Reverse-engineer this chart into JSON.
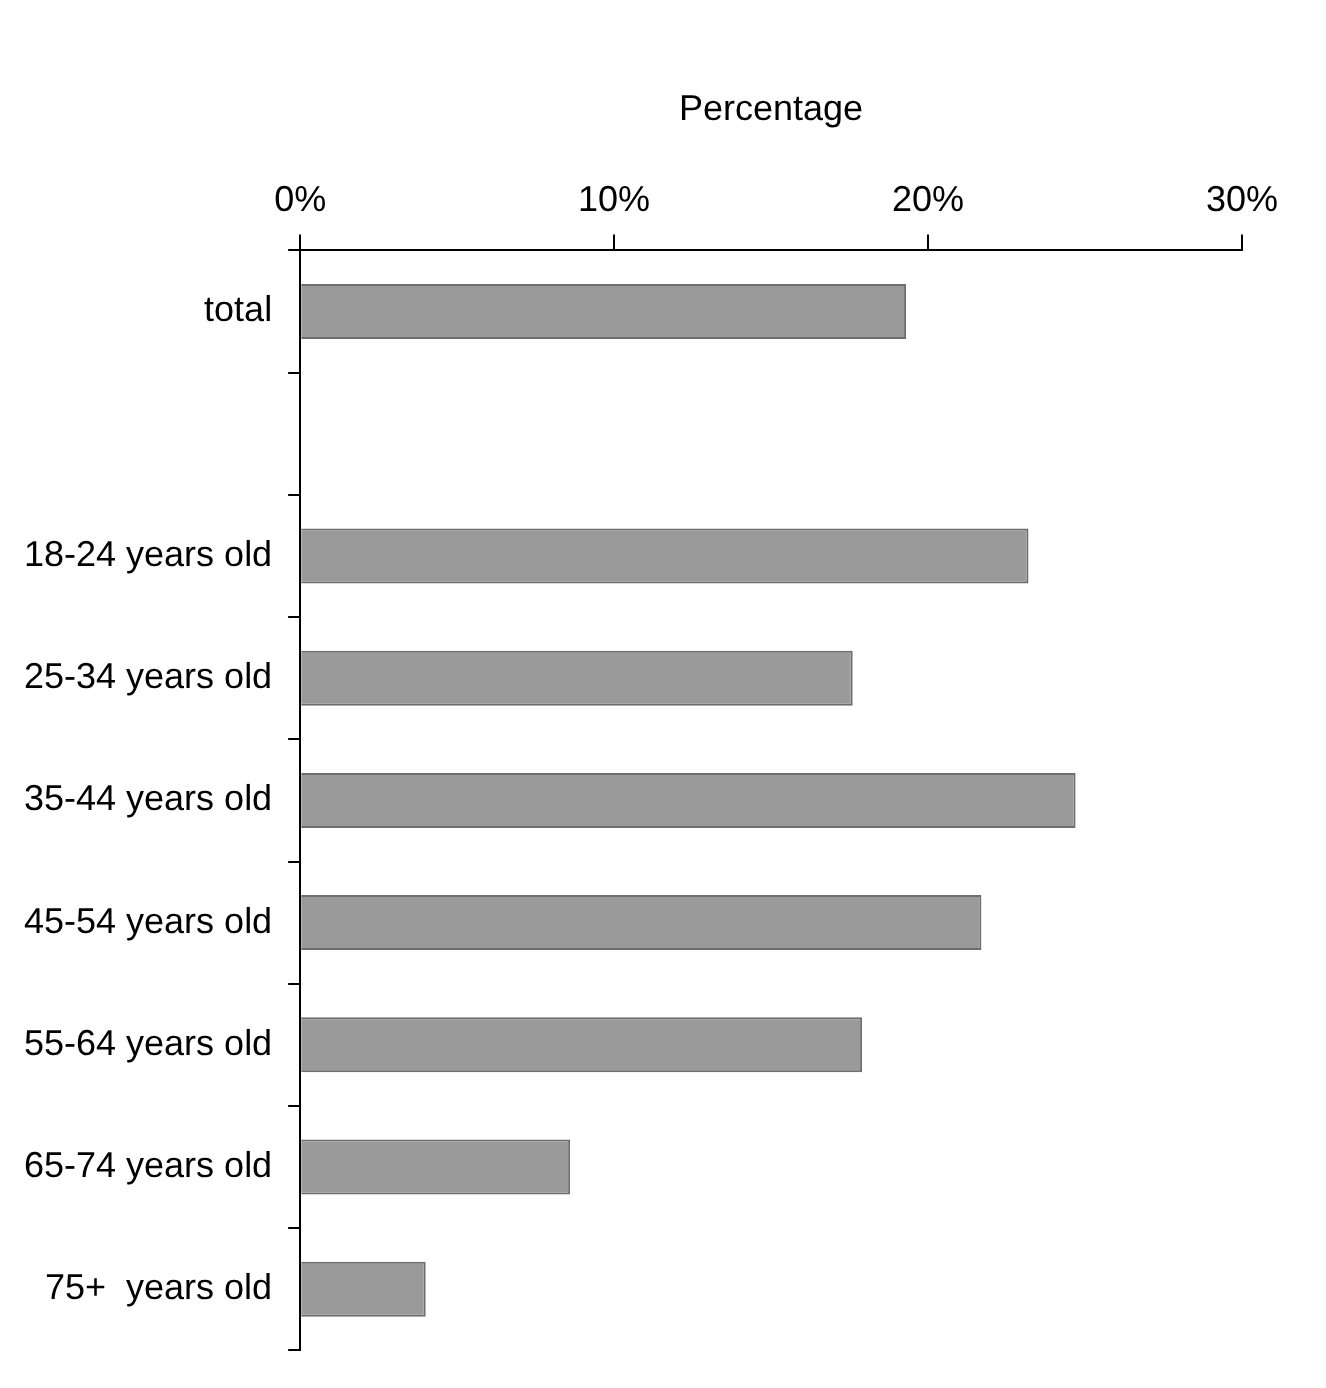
{
  "chart_data": {
    "type": "bar",
    "orientation": "horizontal",
    "xlabel": "Percentage",
    "categories": [
      "total",
      null,
      "18-24 years old",
      "25-34 years old",
      "35-44 years old",
      "45-54 years old",
      "55-64 years old",
      "65-74 years old",
      "75+  years old"
    ],
    "values": [
      19.3,
      null,
      23.2,
      17.6,
      24.7,
      21.7,
      17.9,
      8.6,
      4.0
    ],
    "color": "#9a9a9a",
    "xlim": [
      0,
      30
    ],
    "xticks": [
      {
        "value": 0,
        "label": "0%"
      },
      {
        "value": 10,
        "label": "10%"
      },
      {
        "value": 20,
        "label": "20%"
      },
      {
        "value": 30,
        "label": "30%"
      }
    ],
    "grid": false,
    "legend": false
  }
}
